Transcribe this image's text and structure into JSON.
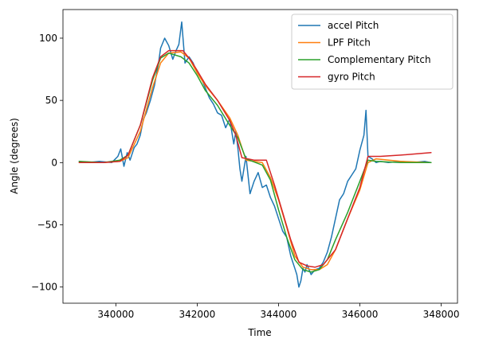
{
  "chart_data": {
    "type": "line",
    "title": "",
    "xlabel": "Time",
    "ylabel": "Angle (degrees)",
    "xlim": [
      338700,
      348400
    ],
    "ylim": [
      -113,
      123
    ],
    "xticks": [
      340000,
      342000,
      344000,
      346000,
      348000
    ],
    "xtick_labels": [
      "340000",
      "342000",
      "344000",
      "346000",
      "348000"
    ],
    "yticks": [
      -100,
      -50,
      0,
      50,
      100
    ],
    "ytick_labels": [
      "−100",
      "−50",
      "0",
      "50",
      "100"
    ],
    "grid": false,
    "legend": {
      "placement": "top-right"
    },
    "series": [
      {
        "name": "accel Pitch",
        "color": "#1f77b4",
        "x": [
          339100,
          339300,
          339600,
          339900,
          340050,
          340120,
          340200,
          340280,
          340350,
          340450,
          340520,
          340600,
          340680,
          340750,
          340850,
          340950,
          341050,
          341100,
          341200,
          341300,
          341400,
          341480,
          341550,
          341620,
          341700,
          341800,
          341900,
          342000,
          342100,
          342200,
          342300,
          342400,
          342500,
          342600,
          342700,
          342800,
          342900,
          342950,
          343000,
          343050,
          343100,
          343200,
          343300,
          343400,
          343500,
          343600,
          343700,
          343800,
          343900,
          344000,
          344100,
          344200,
          344300,
          344350,
          344400,
          344450,
          344500,
          344550,
          344600,
          344650,
          344700,
          344800,
          344900,
          345000,
          345100,
          345200,
          345300,
          345400,
          345500,
          345600,
          345700,
          345800,
          345900,
          346000,
          346100,
          346150,
          346200,
          346300,
          346400,
          346500,
          346700,
          347000,
          347300,
          347600,
          347750
        ],
        "y": [
          1,
          0,
          1,
          0,
          5,
          11,
          -3,
          8,
          2,
          12,
          15,
          22,
          35,
          40,
          50,
          62,
          80,
          92,
          100,
          94,
          83,
          90,
          95,
          113,
          80,
          85,
          80,
          72,
          68,
          60,
          52,
          47,
          40,
          38,
          28,
          35,
          15,
          25,
          12,
          -5,
          -15,
          5,
          -25,
          -15,
          -8,
          -20,
          -18,
          -28,
          -35,
          -45,
          -55,
          -60,
          -75,
          -80,
          -85,
          -90,
          -100,
          -95,
          -85,
          -88,
          -82,
          -90,
          -86,
          -85,
          -80,
          -72,
          -60,
          -45,
          -30,
          -25,
          -15,
          -10,
          -5,
          10,
          22,
          42,
          5,
          3,
          0,
          1,
          0,
          1,
          0,
          1,
          0
        ]
      },
      {
        "name": "LPF Pitch",
        "color": "#ff7f0e",
        "x": [
          339100,
          339700,
          340100,
          340300,
          340600,
          340900,
          341100,
          341300,
          341600,
          341800,
          342000,
          342200,
          342500,
          342800,
          343000,
          343200,
          343600,
          343800,
          344000,
          344200,
          344400,
          344600,
          344800,
          345000,
          345200,
          345400,
          345700,
          346000,
          346200,
          346400,
          347000,
          347750
        ],
        "y": [
          0,
          0,
          1,
          4,
          25,
          60,
          80,
          88,
          89,
          84,
          72,
          62,
          50,
          36,
          22,
          2,
          0,
          -12,
          -30,
          -52,
          -75,
          -84,
          -86,
          -86,
          -82,
          -70,
          -45,
          -22,
          0,
          3,
          1,
          0
        ]
      },
      {
        "name": "Complementary Pitch",
        "color": "#2ca02c",
        "x": [
          339100,
          339700,
          340100,
          340300,
          340600,
          340900,
          341100,
          341300,
          341600,
          341800,
          342000,
          342200,
          342500,
          342800,
          343000,
          343200,
          343600,
          343800,
          344000,
          344200,
          344400,
          344600,
          344800,
          345000,
          345200,
          345400,
          345700,
          346000,
          346200,
          346400,
          347000,
          347750
        ],
        "y": [
          1,
          0,
          2,
          6,
          30,
          66,
          84,
          88,
          85,
          80,
          70,
          58,
          46,
          30,
          20,
          3,
          -2,
          -14,
          -38,
          -60,
          -78,
          -86,
          -88,
          -86,
          -78,
          -62,
          -40,
          -15,
          2,
          1,
          0,
          0
        ]
      },
      {
        "name": "gyro Pitch",
        "color": "#d62728",
        "x": [
          339100,
          339700,
          340100,
          340300,
          340600,
          340900,
          341100,
          341300,
          341650,
          341850,
          342000,
          342200,
          342500,
          342800,
          342950,
          343100,
          343400,
          343700,
          343900,
          344100,
          344300,
          344500,
          344700,
          344900,
          345100,
          345400,
          345700,
          346000,
          346200,
          346300,
          346500,
          347000,
          347750
        ],
        "y": [
          0,
          0,
          1,
          6,
          30,
          68,
          85,
          90,
          90,
          82,
          74,
          63,
          50,
          34,
          22,
          4,
          2,
          2,
          -18,
          -40,
          -62,
          -80,
          -83,
          -84,
          -82,
          -70,
          -45,
          -20,
          5,
          5,
          5,
          6,
          8
        ]
      }
    ]
  }
}
